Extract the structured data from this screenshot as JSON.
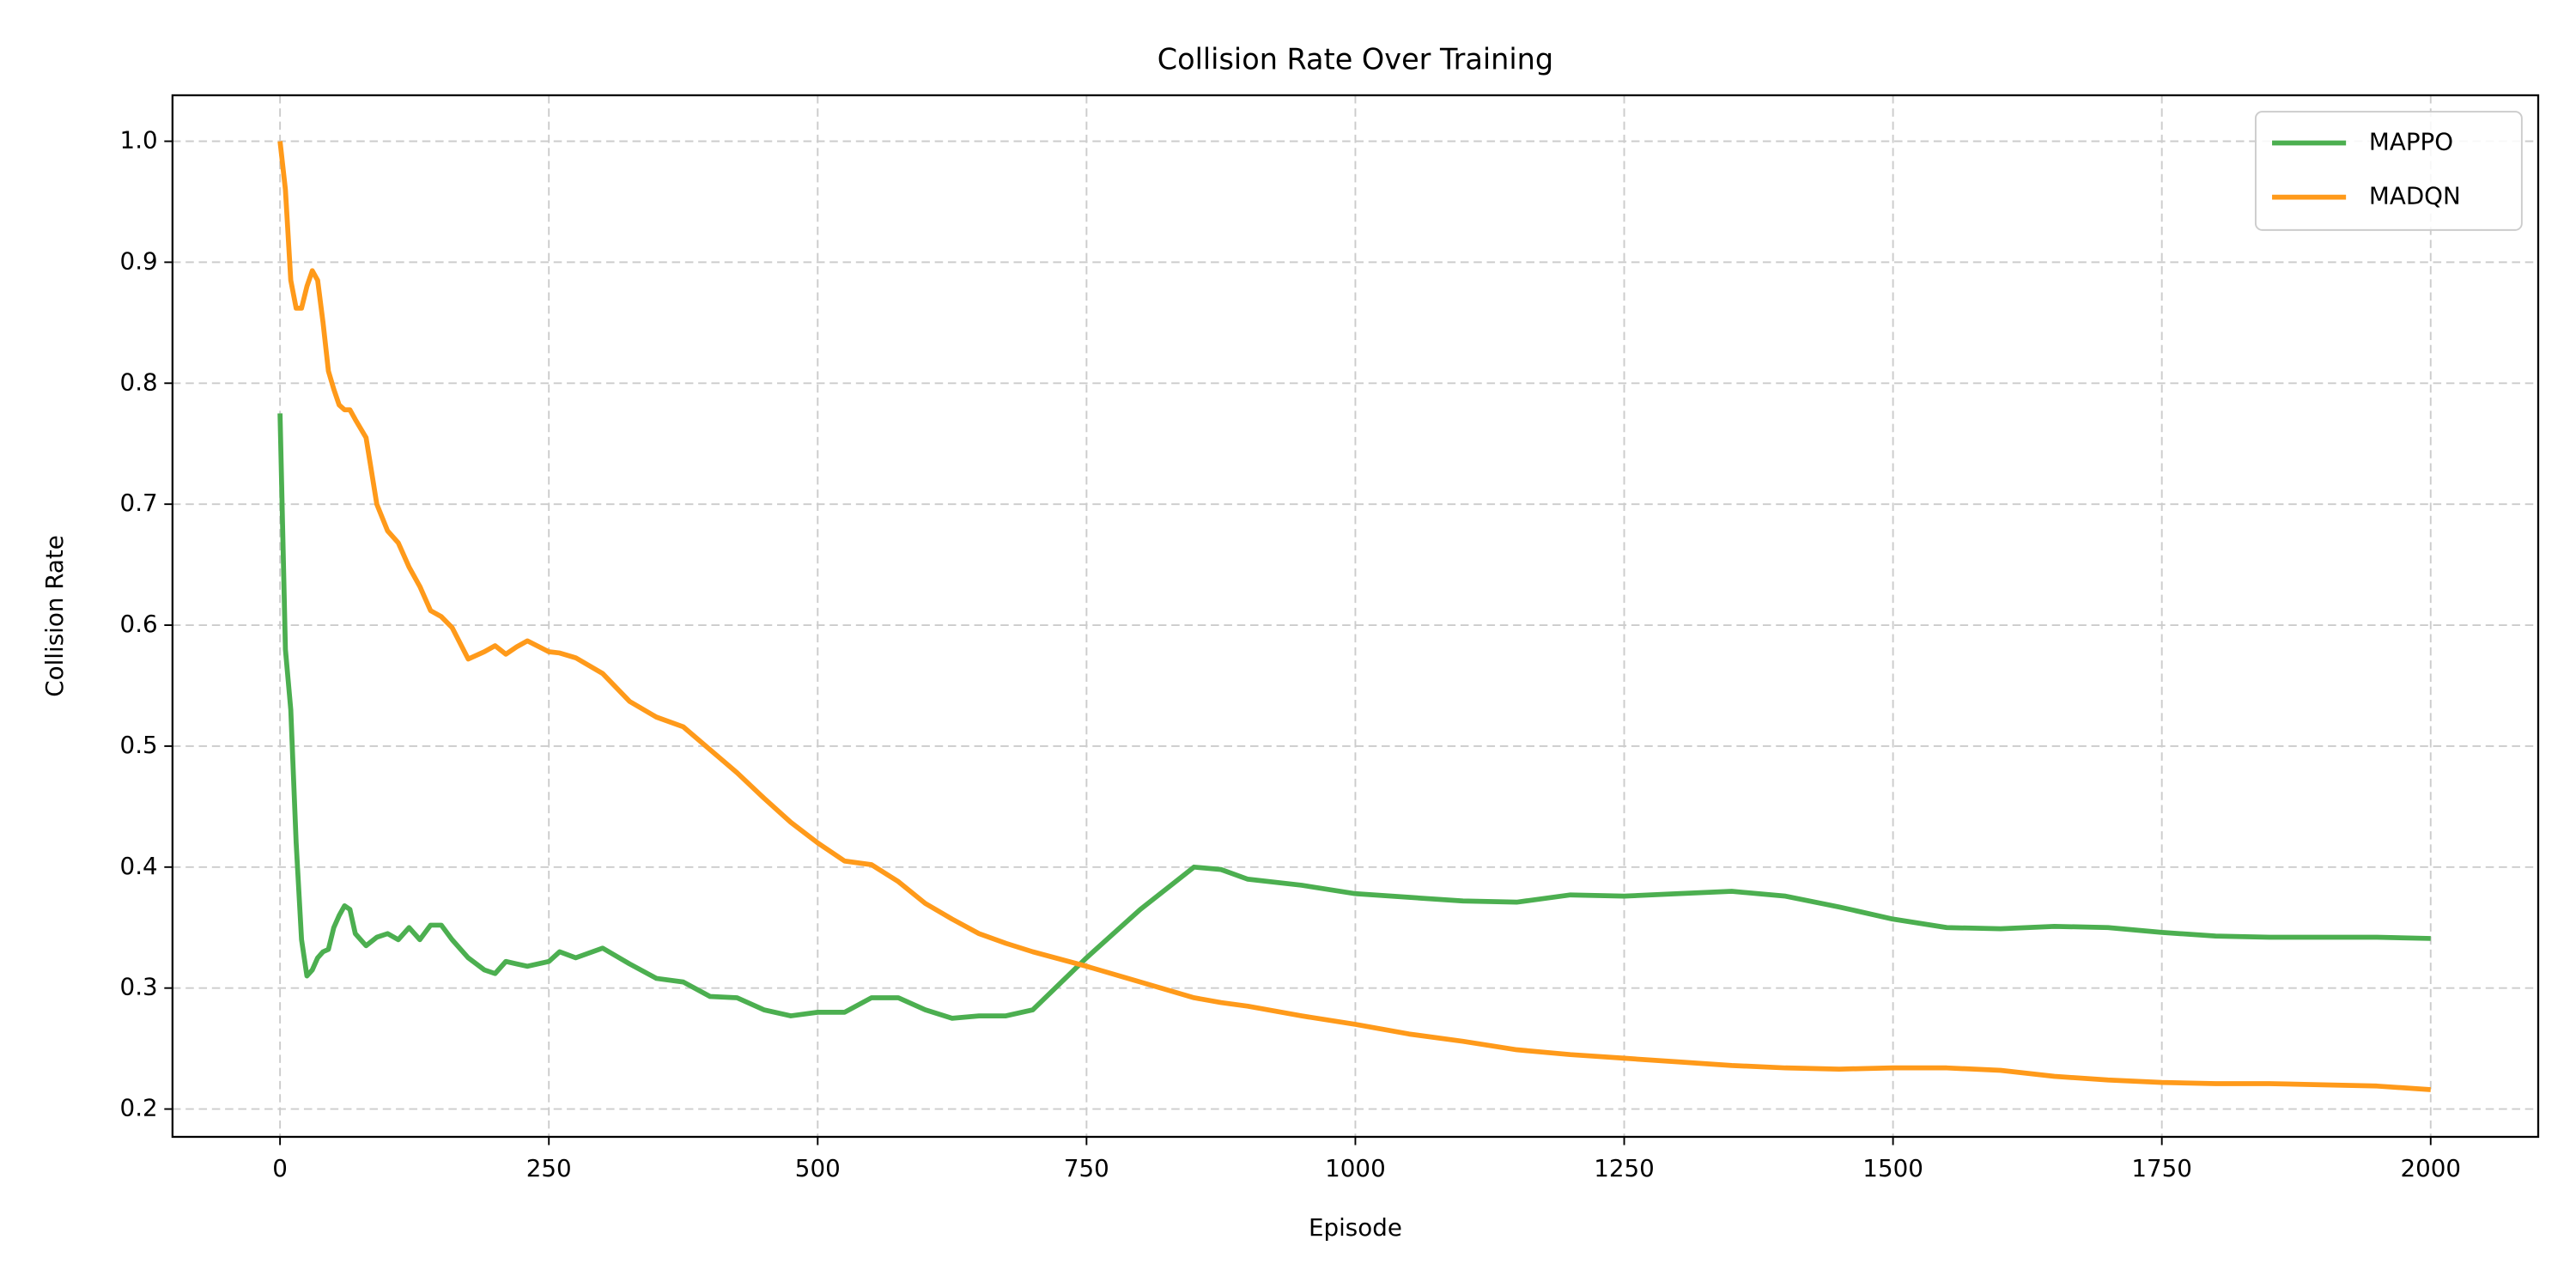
{
  "chart_data": {
    "type": "line",
    "title": "Collision Rate Over Training",
    "xlabel": "Episode",
    "ylabel": "Collision Rate",
    "x": [
      0,
      5,
      10,
      15,
      20,
      25,
      30,
      35,
      40,
      45,
      50,
      55,
      60,
      65,
      70,
      80,
      90,
      100,
      110,
      120,
      130,
      140,
      150,
      160,
      175,
      190,
      200,
      210,
      220,
      230,
      250,
      260,
      275,
      300,
      325,
      350,
      375,
      400,
      425,
      450,
      475,
      500,
      525,
      550,
      575,
      600,
      625,
      650,
      675,
      700,
      750,
      800,
      850,
      875,
      900,
      950,
      1000,
      1050,
      1100,
      1150,
      1200,
      1250,
      1300,
      1350,
      1400,
      1450,
      1500,
      1550,
      1600,
      1650,
      1700,
      1750,
      1800,
      1850,
      1900,
      1950,
      2000
    ],
    "series": [
      {
        "name": "MAPPO",
        "color": "#4caf50",
        "values": [
          0.775,
          0.58,
          0.53,
          0.42,
          0.34,
          0.31,
          0.315,
          0.325,
          0.33,
          0.332,
          0.35,
          0.36,
          0.368,
          0.365,
          0.345,
          0.335,
          0.342,
          0.345,
          0.34,
          0.35,
          0.34,
          0.352,
          0.352,
          0.34,
          0.325,
          0.315,
          0.312,
          0.322,
          0.32,
          0.318,
          0.322,
          0.33,
          0.325,
          0.333,
          0.32,
          0.308,
          0.305,
          0.293,
          0.292,
          0.282,
          0.277,
          0.28,
          0.28,
          0.292,
          0.292,
          0.282,
          0.275,
          0.277,
          0.277,
          0.282,
          0.325,
          0.365,
          0.4,
          0.398,
          0.39,
          0.385,
          0.378,
          0.375,
          0.372,
          0.371,
          0.377,
          0.376,
          0.378,
          0.38,
          0.376,
          0.367,
          0.357,
          0.35,
          0.349,
          0.351,
          0.35,
          0.346,
          0.343,
          0.342,
          0.342,
          0.342,
          0.341
        ]
      },
      {
        "name": "MADQN",
        "color": "#ff9a1a",
        "values": [
          1.0,
          0.96,
          0.885,
          0.862,
          0.862,
          0.88,
          0.893,
          0.885,
          0.85,
          0.81,
          0.795,
          0.782,
          0.778,
          0.778,
          0.77,
          0.755,
          0.7,
          0.678,
          0.668,
          0.648,
          0.632,
          0.612,
          0.607,
          0.598,
          0.572,
          0.578,
          0.583,
          0.576,
          0.582,
          0.587,
          0.578,
          0.577,
          0.573,
          0.56,
          0.537,
          0.524,
          0.516,
          0.497,
          0.478,
          0.457,
          0.437,
          0.42,
          0.405,
          0.402,
          0.388,
          0.37,
          0.357,
          0.345,
          0.337,
          0.33,
          0.318,
          0.305,
          0.292,
          0.288,
          0.285,
          0.277,
          0.27,
          0.262,
          0.256,
          0.249,
          0.245,
          0.242,
          0.239,
          0.236,
          0.234,
          0.233,
          0.234,
          0.234,
          0.232,
          0.227,
          0.224,
          0.222,
          0.221,
          0.221,
          0.22,
          0.219,
          0.216
        ]
      }
    ],
    "xlim": [
      -100,
      2100
    ],
    "xticks": [
      0,
      250,
      500,
      750,
      1000,
      1250,
      1500,
      1750,
      2000
    ],
    "ylim": [
      0.177,
      1.038
    ],
    "yticks": [
      0.2,
      0.3,
      0.4,
      0.5,
      0.6,
      0.7,
      0.8,
      0.9,
      {
        "value": 1,
        "label": "1.0"
      }
    ],
    "grid": true,
    "legend": "upper right"
  }
}
